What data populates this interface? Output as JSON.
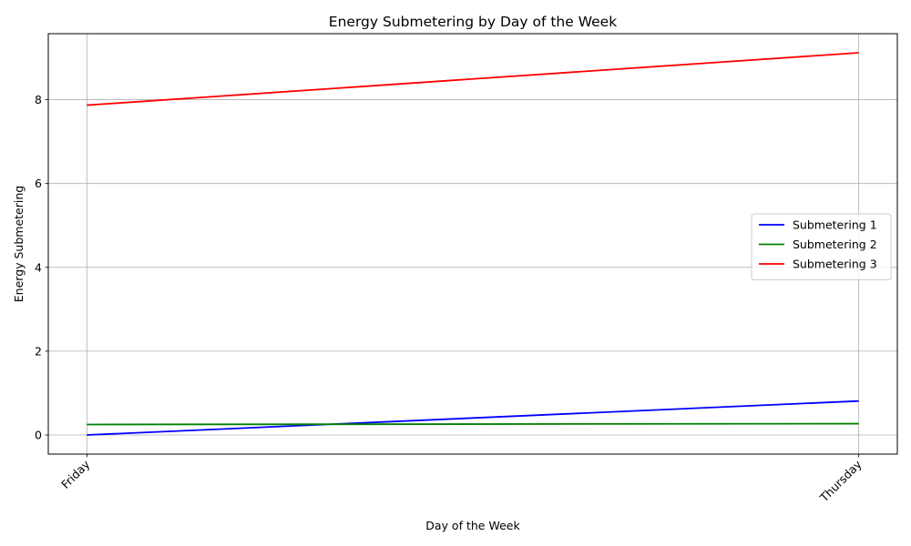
{
  "chart_data": {
    "type": "line",
    "title": "Energy Submetering by Day of the Week",
    "xlabel": "Day of the Week",
    "ylabel": "Energy Submetering",
    "categories": [
      "Friday",
      "Thursday"
    ],
    "yticks": [
      0,
      2,
      4,
      6,
      8
    ],
    "ylim": [
      -0.456,
      9.576
    ],
    "grid": true,
    "legend_position": "center-right",
    "series": [
      {
        "name": "Submetering 1",
        "color": "#0000ff",
        "values": [
          0.0,
          0.81
        ]
      },
      {
        "name": "Submetering 2",
        "color": "#008000",
        "values": [
          0.25,
          0.27
        ]
      },
      {
        "name": "Submetering 3",
        "color": "#ff0000",
        "values": [
          7.87,
          9.12
        ]
      }
    ]
  }
}
